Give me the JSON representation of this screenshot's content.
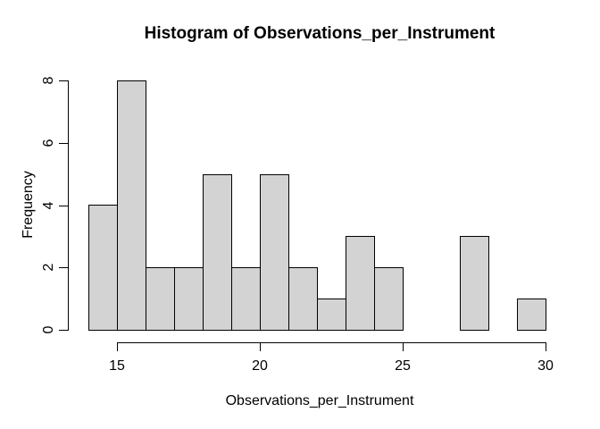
{
  "chart_data": {
    "type": "bar",
    "subtype": "histogram",
    "title": "Histogram of Observations_per_Instrument",
    "xlabel": "Observations_per_Instrument",
    "ylabel": "Frequency",
    "bin_start": 14,
    "bin_width": 1,
    "bin_edges": [
      14,
      15,
      16,
      17,
      18,
      19,
      20,
      21,
      22,
      23,
      24,
      25,
      26,
      27,
      28,
      29,
      30
    ],
    "values": [
      4,
      8,
      2,
      2,
      5,
      2,
      5,
      2,
      1,
      3,
      2,
      0,
      0,
      3,
      0,
      1
    ],
    "x_ticks": [
      15,
      20,
      25,
      30
    ],
    "y_ticks": [
      0,
      2,
      4,
      6,
      8
    ],
    "xlim": [
      14,
      30
    ],
    "ylim": [
      0,
      8
    ],
    "grid": false,
    "legend": false,
    "colors": {
      "bar_fill": "#d3d3d3",
      "bar_border": "#000000",
      "axis": "#000000",
      "text": "#000000",
      "background": "#ffffff"
    }
  }
}
